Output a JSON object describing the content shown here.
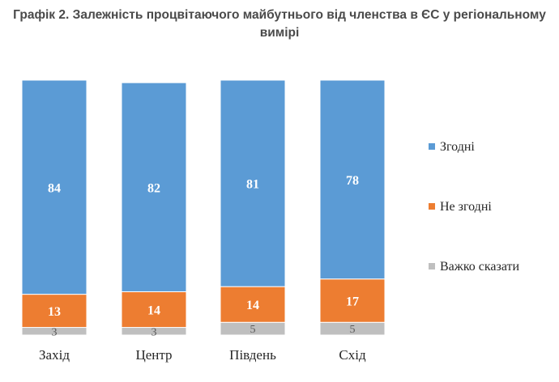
{
  "title_line1": "Графік 2. Залежність процвітаючого майбутнього від членства в ЄС у регіональному",
  "title_line2": "вимірі",
  "chart_data": {
    "type": "bar",
    "stacked": true,
    "categories": [
      "Захід",
      "Центр",
      "Південь",
      "Схід"
    ],
    "series": [
      {
        "name": "Важко сказати",
        "color": "#bfbfbf",
        "values": [
          3,
          3,
          5,
          5
        ]
      },
      {
        "name": "Не згодні",
        "color": "#ed7d31",
        "values": [
          13,
          14,
          14,
          17
        ]
      },
      {
        "name": "Згодні",
        "color": "#5b9bd5",
        "values": [
          84,
          82,
          81,
          78
        ]
      }
    ],
    "ylim": [
      0,
      100
    ],
    "grid": false,
    "legend": "right",
    "legend_order": [
      "Згодні",
      "Не згодні",
      "Важко сказати"
    ]
  }
}
